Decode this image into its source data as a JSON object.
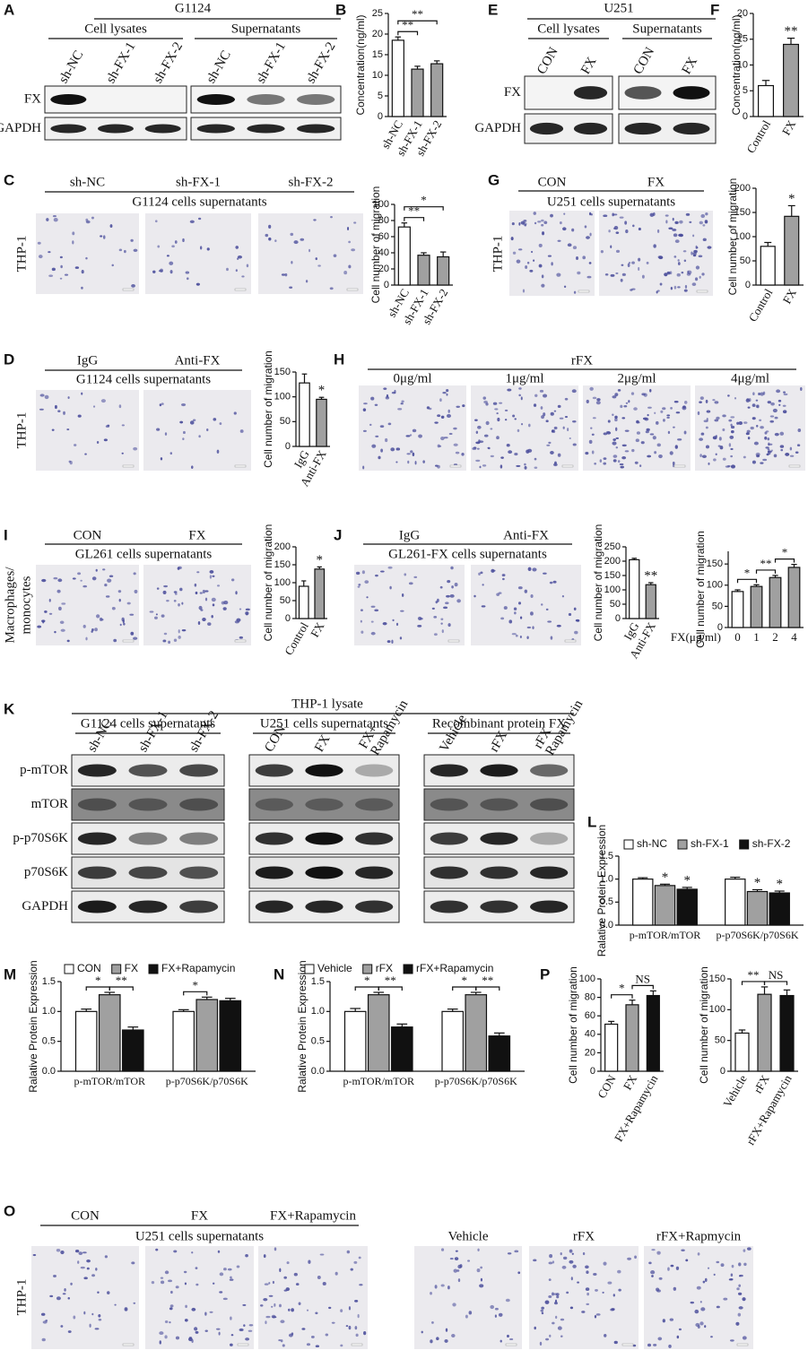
{
  "panel_labels": [
    "A",
    "B",
    "E",
    "F",
    "C",
    "G",
    "D",
    "H",
    "I",
    "J",
    "K",
    "L",
    "M",
    "N",
    "P",
    "O"
  ],
  "blots": [
    {
      "title": "G1124",
      "groups": [
        {
          "name": "Cell lysates",
          "lanes": [
            "sh-NC",
            "sh-FX-1",
            "sh-FX-2"
          ]
        },
        {
          "name": "Supernatants",
          "lanes": [
            "sh-NC",
            "sh-FX-1",
            "sh-FX-2"
          ]
        }
      ],
      "rows": [
        "FX",
        "GAPDH"
      ]
    },
    {
      "title": "U251",
      "groups": [
        {
          "name": "Cell lysates",
          "lanes": [
            "CON",
            "FX"
          ]
        },
        {
          "name": "Supernatants",
          "lanes": [
            "CON",
            "FX"
          ]
        }
      ],
      "rows": [
        "FX",
        "GAPDH"
      ]
    },
    {
      "title": "THP-1 lysate",
      "groups": [
        {
          "name": "G1124 cells supernatants",
          "lanes": [
            "sh-NC",
            "sh-FX-1",
            "sh-FX-2"
          ]
        },
        {
          "name": "U251 cells supernatants",
          "lanes": [
            "CON",
            "FX",
            "FX+ Rapamycin"
          ]
        },
        {
          "name": "Recombinant protein FX",
          "lanes": [
            "Vehicle",
            "rFX",
            "rFX Rapamycin"
          ]
        }
      ],
      "rows": [
        "p-mTOR",
        "mTOR",
        "p-p70S6K",
        "p70S6K",
        "GAPDH"
      ]
    }
  ],
  "micrographs": [
    {
      "side_label": [
        "THP-1"
      ],
      "labels": [
        "sh-NC",
        "sh-FX-1",
        "sh-FX-2"
      ],
      "caption": "G1124 cells supernatants"
    },
    {
      "side_label": [
        "THP-1"
      ],
      "labels": [
        "CON",
        "FX"
      ],
      "caption": "U251 cells supernatants"
    },
    {
      "side_label": [
        "THP-1"
      ],
      "labels": [
        "IgG",
        "Anti-FX"
      ],
      "caption": "G1124 cells supernatants"
    },
    {
      "labels": [
        "0μg/ml",
        "1μg/ml",
        "2μg/ml",
        "4μg/ml"
      ],
      "caption": "rFX"
    },
    {
      "side_label": [
        "Macrophages/",
        "monocytes"
      ],
      "labels": [
        "CON",
        "FX"
      ],
      "caption": "GL261 cells supernatants"
    },
    {
      "labels": [
        "IgG",
        "Anti-FX"
      ],
      "caption": "GL261-FX cells supernatants"
    },
    {
      "side_label": [
        "THP-1"
      ],
      "labels": [
        "CON",
        "FX",
        "FX+Rapamycin"
      ],
      "caption": "U251 cells supernatants"
    },
    {
      "labels": [
        "Vehicle",
        "rFX",
        "rFX+Rapmycin"
      ]
    }
  ],
  "chart_data": [
    {
      "type": "bar",
      "y_label": "Concentration(ng/ml)",
      "categories": [
        "sh-NC",
        "sh-FX-1",
        "sh-FX-2"
      ],
      "values": [
        18.5,
        11.5,
        12.8
      ],
      "errors": [
        0.8,
        0.7,
        0.7
      ],
      "colors": [
        "#ffffff",
        "#a0a0a0",
        "#a0a0a0"
      ],
      "ylim": [
        0,
        25
      ],
      "yticks": [
        0,
        5,
        10,
        15,
        20,
        25
      ],
      "annotations": [
        {
          "text": "**",
          "between": [
            "sh-NC",
            "sh-FX-1"
          ]
        },
        {
          "text": "**",
          "between": [
            "sh-NC",
            "sh-FX-2"
          ]
        }
      ]
    },
    {
      "type": "bar",
      "y_label": "Concentration(ng/ml)",
      "categories": [
        "Control",
        "FX"
      ],
      "values": [
        6,
        14
      ],
      "errors": [
        1,
        1.2
      ],
      "colors": [
        "#ffffff",
        "#a0a0a0"
      ],
      "ylim": [
        0,
        20
      ],
      "yticks": [
        0,
        5,
        10,
        15,
        20
      ],
      "annotations": [
        {
          "text": "**",
          "over": "FX"
        }
      ]
    },
    {
      "type": "bar",
      "y_label": "Cell number of migration",
      "categories": [
        "sh-NC",
        "sh-FX-1",
        "sh-FX-2"
      ],
      "values": [
        72,
        37,
        35
      ],
      "errors": [
        5,
        3,
        6
      ],
      "colors": [
        "#ffffff",
        "#a0a0a0",
        "#a0a0a0"
      ],
      "ylim": [
        0,
        100
      ],
      "yticks": [
        0,
        20,
        40,
        60,
        80,
        100
      ],
      "annotations": [
        {
          "text": "**",
          "between": [
            "sh-NC",
            "sh-FX-1"
          ]
        },
        {
          "text": "*",
          "between": [
            "sh-NC",
            "sh-FX-2"
          ]
        }
      ]
    },
    {
      "type": "bar",
      "y_label": "Cell number of migration",
      "categories": [
        "Control",
        "FX"
      ],
      "values": [
        80,
        142
      ],
      "errors": [
        8,
        22
      ],
      "colors": [
        "#ffffff",
        "#a0a0a0"
      ],
      "ylim": [
        0,
        200
      ],
      "yticks": [
        0,
        50,
        100,
        150,
        200
      ],
      "annotations": [
        {
          "text": "*",
          "over": "FX"
        }
      ]
    },
    {
      "type": "bar",
      "y_label": "Cell number of migration",
      "categories": [
        "IgG",
        "Anti-FX"
      ],
      "values": [
        128,
        95
      ],
      "errors": [
        18,
        4
      ],
      "colors": [
        "#ffffff",
        "#a0a0a0"
      ],
      "ylim": [
        0,
        150
      ],
      "yticks": [
        0,
        50,
        100,
        150
      ],
      "annotations": [
        {
          "text": "*",
          "over": "Anti-FX"
        }
      ]
    },
    {
      "type": "bar",
      "y_label": "Cell number of migration",
      "categories": [
        "Control",
        "FX"
      ],
      "values": [
        90,
        138
      ],
      "errors": [
        15,
        6
      ],
      "colors": [
        "#ffffff",
        "#a0a0a0"
      ],
      "ylim": [
        0,
        200
      ],
      "yticks": [
        0,
        50,
        100,
        150,
        200
      ],
      "annotations": [
        {
          "text": "*",
          "over": "FX"
        }
      ]
    },
    {
      "type": "bar",
      "y_label": "Cell number of migration",
      "categories": [
        "IgG",
        "Anti-FX"
      ],
      "values": [
        205,
        118
      ],
      "errors": [
        5,
        7
      ],
      "colors": [
        "#ffffff",
        "#a0a0a0"
      ],
      "ylim": [
        0,
        250
      ],
      "yticks": [
        0,
        50,
        100,
        150,
        200,
        250
      ],
      "annotations": [
        {
          "text": "**",
          "over": "Anti-FX"
        }
      ]
    },
    {
      "type": "bar",
      "y_label": "Cell number of migration",
      "x_label": "FX(μg/ml)",
      "categories": [
        "0",
        "1",
        "2",
        "4"
      ],
      "values": [
        85,
        97,
        118,
        142
      ],
      "errors": [
        4,
        4,
        5,
        7
      ],
      "colors": [
        "#ffffff",
        "#a0a0a0",
        "#a0a0a0",
        "#a0a0a0"
      ],
      "ylim": [
        0,
        180
      ],
      "yticks": [
        0,
        50,
        100,
        150
      ],
      "annotations": [
        {
          "text": "*",
          "between": [
            "0",
            "1"
          ]
        },
        {
          "text": "**",
          "between": [
            "1",
            "2"
          ]
        },
        {
          "text": "*",
          "between": [
            "2",
            "4"
          ]
        }
      ]
    },
    {
      "type": "grouped_bar",
      "y_label": "Ralative Protein Expression",
      "categories": [
        "p-mTOR/mTOR",
        "p-p70S6K/p70S6K"
      ],
      "series": [
        {
          "name": "sh-NC",
          "color": "#ffffff",
          "values": [
            1.0,
            1.0
          ],
          "errors": [
            0.03,
            0.04
          ]
        },
        {
          "name": "sh-FX-1",
          "color": "#a0a0a0",
          "values": [
            0.86,
            0.73
          ],
          "errors": [
            0.03,
            0.04
          ]
        },
        {
          "name": "sh-FX-2",
          "color": "#111111",
          "values": [
            0.78,
            0.7
          ],
          "errors": [
            0.04,
            0.04
          ]
        }
      ],
      "ylim": [
        0,
        1.5
      ],
      "yticks": [
        {
          "value": 0,
          "label": "0.0"
        },
        {
          "value": 0.5,
          "label": "0.5"
        },
        {
          "value": 1,
          "label": "1.0"
        },
        {
          "value": 1.5,
          "label": "1.5"
        }
      ],
      "annotations": [
        {
          "text": "*",
          "group": "p-mTOR/mTOR",
          "over": "sh-FX-1"
        },
        {
          "text": "*",
          "group": "p-mTOR/mTOR",
          "over": "sh-FX-2"
        },
        {
          "text": "*",
          "group": "p-p70S6K/p70S6K",
          "over": "sh-FX-1"
        },
        {
          "text": "*",
          "group": "p-p70S6K/p70S6K",
          "over": "sh-FX-2"
        }
      ]
    },
    {
      "type": "grouped_bar",
      "y_label": "Ralative Protein Expression",
      "categories": [
        "p-mTOR/mTOR",
        "p-p70S6K/p70S6K"
      ],
      "series": [
        {
          "name": "CON",
          "color": "#ffffff",
          "values": [
            1.0,
            1.0
          ],
          "errors": [
            0.04,
            0.03
          ]
        },
        {
          "name": "FX",
          "color": "#a0a0a0",
          "values": [
            1.28,
            1.2
          ],
          "errors": [
            0.04,
            0.04
          ]
        },
        {
          "name": "FX+Rapamycin",
          "color": "#111111",
          "values": [
            0.69,
            1.18
          ],
          "errors": [
            0.05,
            0.04
          ]
        }
      ],
      "ylim": [
        0,
        1.5
      ],
      "yticks": [
        {
          "value": 0,
          "label": "0.0"
        },
        {
          "value": 0.5,
          "label": "0.5"
        },
        {
          "value": 1,
          "label": "1.0"
        },
        {
          "value": 1.5,
          "label": "1.5"
        }
      ],
      "annotations": [
        {
          "text": "*",
          "group": "p-mTOR/mTOR",
          "between": [
            "CON",
            "FX"
          ]
        },
        {
          "text": "**",
          "group": "p-mTOR/mTOR",
          "between": [
            "FX",
            "FX+Rapamycin"
          ]
        },
        {
          "text": "*",
          "group": "p-p70S6K/p70S6K",
          "between": [
            "CON",
            "FX"
          ]
        }
      ]
    },
    {
      "type": "grouped_bar",
      "y_label": "Ralative Protein Expression",
      "categories": [
        "p-mTOR/mTOR",
        "p-p70S6K/p70S6K"
      ],
      "series": [
        {
          "name": "Vehicle",
          "color": "#ffffff",
          "values": [
            1.0,
            1.0
          ],
          "errors": [
            0.05,
            0.04
          ]
        },
        {
          "name": "rFX",
          "color": "#a0a0a0",
          "values": [
            1.28,
            1.28
          ],
          "errors": [
            0.04,
            0.04
          ]
        },
        {
          "name": "rFX+Rapamycin",
          "color": "#111111",
          "values": [
            0.74,
            0.59
          ],
          "errors": [
            0.05,
            0.05
          ]
        }
      ],
      "ylim": [
        0,
        1.5
      ],
      "yticks": [
        {
          "value": 0,
          "label": "0.0"
        },
        {
          "value": 0.5,
          "label": "0.5"
        },
        {
          "value": 1,
          "label": "1.0"
        },
        {
          "value": 1.5,
          "label": "1.5"
        }
      ],
      "annotations": [
        {
          "text": "*",
          "group": "p-mTOR/mTOR",
          "between": [
            "Vehicle",
            "rFX"
          ]
        },
        {
          "text": "**",
          "group": "p-mTOR/mTOR",
          "between": [
            "rFX",
            "rFX+Rapamycin"
          ]
        },
        {
          "text": "*",
          "group": "p-p70S6K/p70S6K",
          "between": [
            "Vehicle",
            "rFX"
          ]
        },
        {
          "text": "**",
          "group": "p-p70S6K/p70S6K",
          "between": [
            "rFX",
            "rFX+Rapamycin"
          ]
        }
      ]
    },
    {
      "type": "bar",
      "y_label": "Cell number of migration",
      "categories": [
        "CON",
        "FX",
        "FX+Rapamycin"
      ],
      "values": [
        51,
        72,
        82
      ],
      "errors": [
        3,
        5,
        5
      ],
      "colors": [
        "#ffffff",
        "#a0a0a0",
        "#111111"
      ],
      "ylim": [
        0,
        100
      ],
      "yticks": [
        0,
        20,
        40,
        60,
        80,
        100
      ],
      "annotations": [
        {
          "text": "*",
          "between": [
            "CON",
            "FX"
          ]
        },
        {
          "text": "NS",
          "between": [
            "FX",
            "FX+Rapamycin"
          ]
        }
      ]
    },
    {
      "type": "bar",
      "y_label": "Cell number of migration",
      "categories": [
        "Vehicle",
        "rFX",
        "rFX+Rapamycin"
      ],
      "values": [
        62,
        125,
        123
      ],
      "errors": [
        5,
        12,
        9
      ],
      "colors": [
        "#ffffff",
        "#a0a0a0",
        "#111111"
      ],
      "ylim": [
        0,
        150
      ],
      "yticks": [
        0,
        50,
        100,
        150
      ],
      "annotations": [
        {
          "text": "**",
          "between": [
            "Vehicle",
            "rFX"
          ]
        },
        {
          "text": "NS",
          "between": [
            "rFX",
            "rFX+Rapamycin"
          ]
        }
      ]
    }
  ]
}
